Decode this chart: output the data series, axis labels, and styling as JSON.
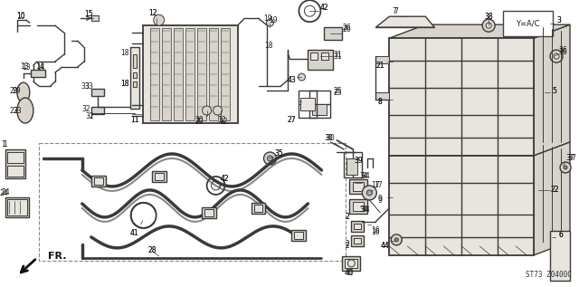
{
  "bg_color": "#ffffff",
  "line_color": "#3a3a3a",
  "label_color": "#1a1a1a",
  "bottom_right_text": "ST73 Z0400C",
  "image_bg": "#f5f2ed",
  "figsize": [
    6.4,
    3.17
  ],
  "dpi": 100,
  "border_color": "#aaaaaa"
}
